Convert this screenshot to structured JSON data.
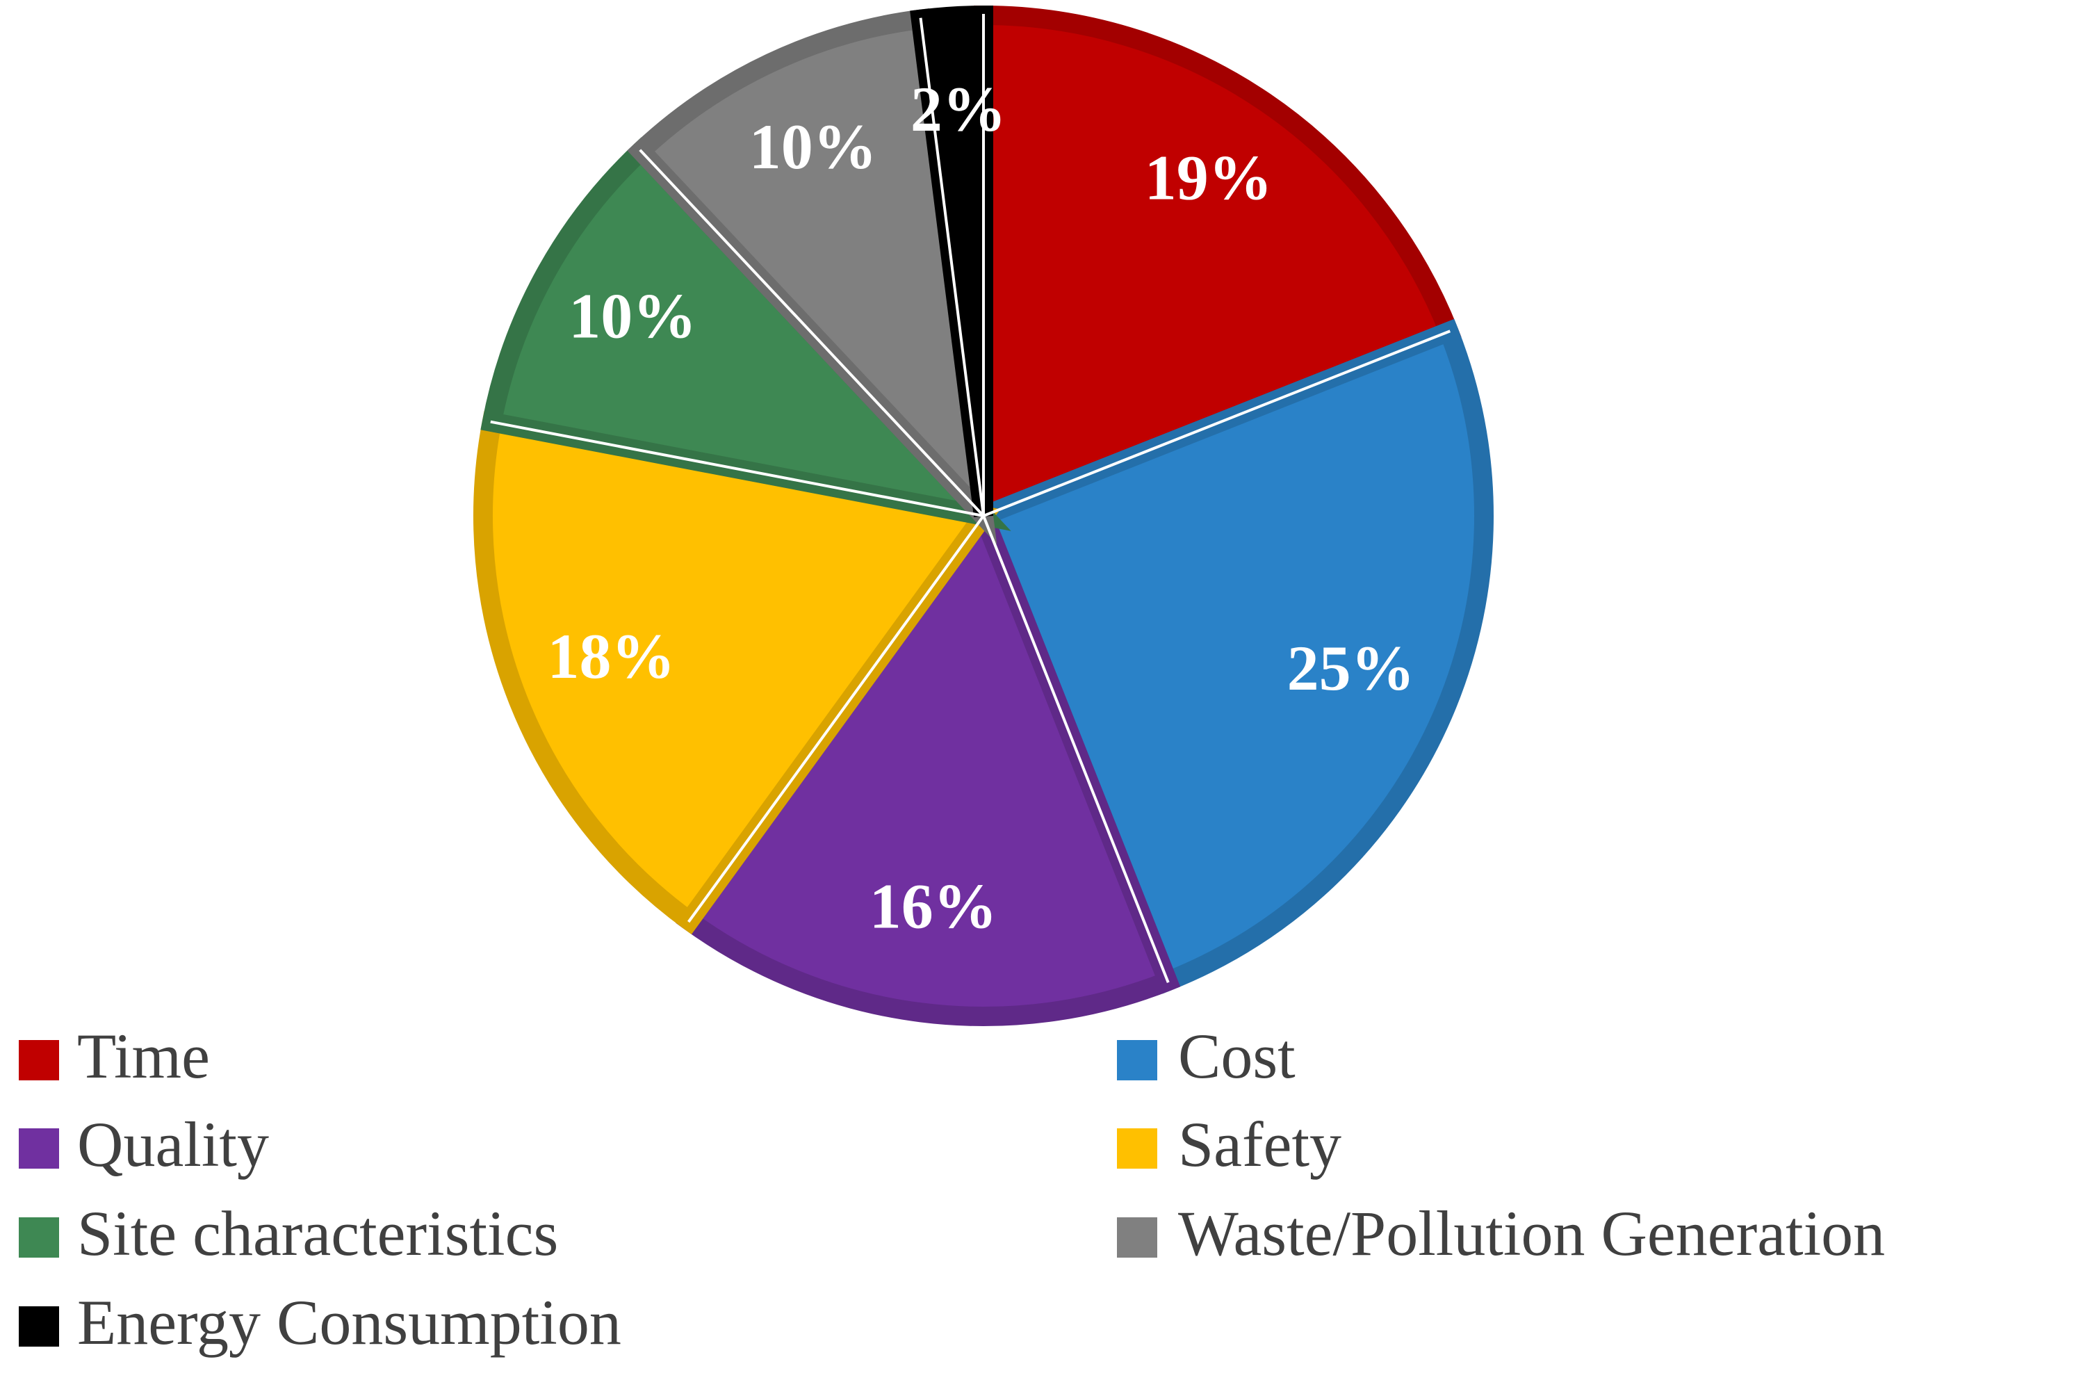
{
  "chart_data": {
    "type": "pie",
    "categories": [
      "Time",
      "Cost",
      "Quality",
      "Safety",
      "Site characteristics",
      "Waste/Pollution Generation",
      "Energy Consumption"
    ],
    "values": [
      19,
      25,
      16,
      18,
      10,
      10,
      2
    ],
    "value_labels": [
      "19%",
      "25%",
      "16%",
      "18%",
      "10%",
      "10%",
      "2%"
    ],
    "colors": [
      "#c00000",
      "#2a82c8",
      "#7030a0",
      "#ffc000",
      "#3e8853",
      "#808080",
      "#000000"
    ],
    "legend": "bottom"
  }
}
